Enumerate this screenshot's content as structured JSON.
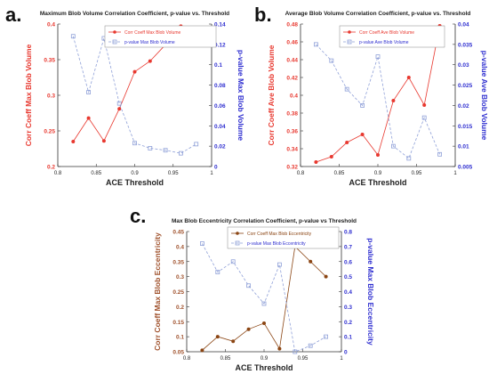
{
  "panels": [
    {
      "letter": "a."
    },
    {
      "letter": "b."
    },
    {
      "letter": "c."
    }
  ],
  "colors": {
    "corr_red": "#e8382f",
    "corr_brown": "#8b4513",
    "pvalue_blue": "#2f2fd0",
    "pvalue_blue_light": "#8fa0d8",
    "left_axis_red": "#e8382f",
    "left_axis_brown": "#a0522d"
  },
  "chart_data": [
    {
      "type": "line",
      "title": "Maximum Blob Volume Correlation Coefficient, p-value  vs. Threshold",
      "xlabel": "ACE Threshold",
      "ylabel_left": "Corr Coeff Max Blob Volume",
      "ylabel_right": "p-value Max Blob Volume",
      "xlim": [
        0.8,
        1.0
      ],
      "ylim_left": [
        0.2,
        0.4
      ],
      "ylim_right": [
        0,
        0.14
      ],
      "x_ticks": [
        "0.8",
        "0.85",
        "0.9",
        "0.95",
        "1"
      ],
      "y_left_ticks": [
        "0.2",
        "0.25",
        "0.3",
        "0.35",
        "0.4"
      ],
      "y_right_ticks": [
        "0",
        "0.02",
        "0.04",
        "0.06",
        "0.08",
        "0.1",
        "0.12",
        "0.14"
      ],
      "legend": "top",
      "x": [
        0.82,
        0.84,
        0.86,
        0.88,
        0.9,
        0.92,
        0.94,
        0.96,
        0.98
      ],
      "series": [
        {
          "name": "Corr Coeff Max Blob Volume",
          "axis": "left",
          "values": [
            0.235,
            0.268,
            0.236,
            0.281,
            0.333,
            0.348,
            0.371,
            0.397,
            0.395
          ]
        },
        {
          "name": "p-value Max Blob Volume",
          "axis": "right",
          "values": [
            0.128,
            0.073,
            0.126,
            0.062,
            0.023,
            0.018,
            0.016,
            0.013,
            0.022
          ]
        }
      ]
    },
    {
      "type": "line",
      "title": "Average Blob Volume Correlation Coefficient, p-value vs. Threshold",
      "xlabel": "ACE Threshold",
      "ylabel_left": "Corr Coeff Ave Blob Volume",
      "ylabel_right": "p-value Ave Blob Volume",
      "xlim": [
        0.8,
        1.0
      ],
      "ylim_left": [
        0.32,
        0.48
      ],
      "ylim_right": [
        0.005,
        0.04
      ],
      "x_ticks": [
        "0.8",
        "0.85",
        "0.9",
        "0.95",
        "1"
      ],
      "y_left_ticks": [
        "0.32",
        "0.34",
        "0.36",
        "0.38",
        "0.4",
        "0.42",
        "0.44",
        "0.46",
        "0.48"
      ],
      "y_right_ticks": [
        "0.005",
        "0.01",
        "0.015",
        "0.02",
        "0.025",
        "0.03",
        "0.035",
        "0.04"
      ],
      "legend": "top",
      "x": [
        0.82,
        0.84,
        0.86,
        0.88,
        0.9,
        0.92,
        0.94,
        0.96,
        0.98
      ],
      "series": [
        {
          "name": "Corr Coeff Ave Blob Volume",
          "axis": "left",
          "values": [
            0.325,
            0.331,
            0.347,
            0.356,
            0.333,
            0.394,
            0.42,
            0.389,
            0.478
          ]
        },
        {
          "name": "p-value Ave Blob Volume",
          "axis": "right",
          "values": [
            0.035,
            0.031,
            0.024,
            0.02,
            0.032,
            0.01,
            0.007,
            0.017,
            0.008
          ]
        }
      ]
    },
    {
      "type": "line",
      "title": "Max Blob Eccentricity Correlation Coefficient, p-value vs Threshold",
      "xlabel": "ACE Threshold",
      "ylabel_left": "Corr Coeff Max Blob Eccentricity",
      "ylabel_right": "p-value Max Blob Eccentricity",
      "xlim": [
        0.8,
        1.0
      ],
      "ylim_left": [
        0.05,
        0.45
      ],
      "ylim_right": [
        0,
        0.8
      ],
      "x_ticks": [
        "0.8",
        "0.85",
        "0.9",
        "0.95",
        "1"
      ],
      "y_left_ticks": [
        "0.05",
        "0.1",
        "0.15",
        "0.2",
        "0.25",
        "0.3",
        "0.35",
        "0.4",
        "0.45"
      ],
      "y_right_ticks": [
        "0",
        "0.1",
        "0.2",
        "0.3",
        "0.4",
        "0.5",
        "0.6",
        "0.7",
        "0.8"
      ],
      "legend": "top",
      "x": [
        0.82,
        0.84,
        0.86,
        0.88,
        0.9,
        0.92,
        0.94,
        0.96,
        0.98
      ],
      "series": [
        {
          "name": "Corr Coeff Max Blob Eccentricity",
          "axis": "left",
          "values": [
            0.055,
            0.1,
            0.085,
            0.125,
            0.145,
            0.06,
            0.4,
            0.35,
            0.3
          ]
        },
        {
          "name": "p-value Max Blob Eccentricity",
          "axis": "right",
          "values": [
            0.72,
            0.53,
            0.6,
            0.44,
            0.32,
            0.58,
            0.0,
            0.04,
            0.1
          ]
        }
      ]
    }
  ]
}
